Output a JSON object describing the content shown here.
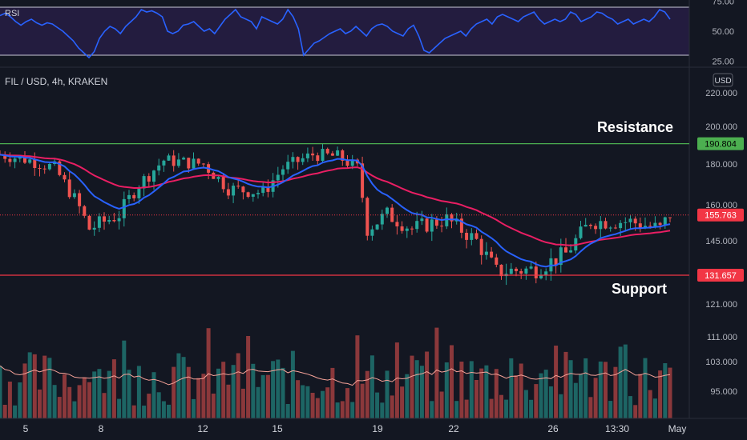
{
  "symbol_title": "FIL / USD, 4h, KRAKEN",
  "currency_badge": "USD",
  "rsi": {
    "label": "RSI",
    "ticks": [
      "75.00",
      "50.00",
      "25.00"
    ],
    "tick_values": [
      75,
      50,
      25
    ],
    "upper_band": 70,
    "lower_band": 30,
    "values": [
      63,
      65,
      62,
      58,
      55,
      58,
      60,
      57,
      55,
      57,
      56,
      53,
      50,
      46,
      42,
      36,
      32,
      28,
      33,
      44,
      50,
      54,
      52,
      48,
      54,
      58,
      62,
      68,
      66,
      67,
      65,
      62,
      50,
      48,
      50,
      55,
      56,
      58,
      54,
      50,
      52,
      48,
      54,
      60,
      64,
      68,
      62,
      60,
      58,
      52,
      62,
      60,
      58,
      56,
      60,
      68,
      62,
      52,
      30,
      35,
      40,
      42,
      45,
      48,
      50,
      52,
      48,
      50,
      54,
      50,
      46,
      52,
      55,
      56,
      54,
      50,
      48,
      46,
      52,
      55,
      46,
      34,
      32,
      36,
      40,
      44,
      46,
      48,
      50,
      46,
      52,
      56,
      58,
      60,
      56,
      62,
      64,
      62,
      60,
      58,
      62,
      64,
      66,
      60,
      56,
      58,
      60,
      58,
      60,
      66,
      64,
      58,
      60,
      62,
      66,
      65,
      62,
      60,
      56,
      58,
      60,
      56,
      58,
      60,
      58,
      62,
      68,
      66,
      60
    ]
  },
  "price_axis": {
    "ticks": [
      "220.000",
      "200.000",
      "180.000",
      "160.000",
      "145.000",
      "131.657",
      "121.000",
      "111.000",
      "103.000",
      "95.000"
    ],
    "tick_values": [
      220,
      200,
      180,
      160,
      145,
      131.657,
      121,
      111,
      103,
      95
    ],
    "resistance": {
      "value": 190.804,
      "label": "190.804",
      "color": "#4caf50"
    },
    "current": {
      "value": 155.763,
      "label": "155.763",
      "color": "#f23645"
    },
    "support": {
      "value": 131.657,
      "label": "131.657",
      "color": "#f23645"
    }
  },
  "annotations": {
    "resistance_text": "Resistance",
    "support_text": "Support"
  },
  "time_axis": {
    "labels": [
      "5",
      "8",
      "12",
      "15",
      "19",
      "22",
      "26",
      "13:30",
      "May"
    ]
  },
  "colors": {
    "up": "#26a69a",
    "down": "#ef5350",
    "ema_fast": "#2962ff",
    "ema_slow": "#e91e63",
    "rsi_line": "#2962ff",
    "volume_ma": "#f7a399"
  }
}
